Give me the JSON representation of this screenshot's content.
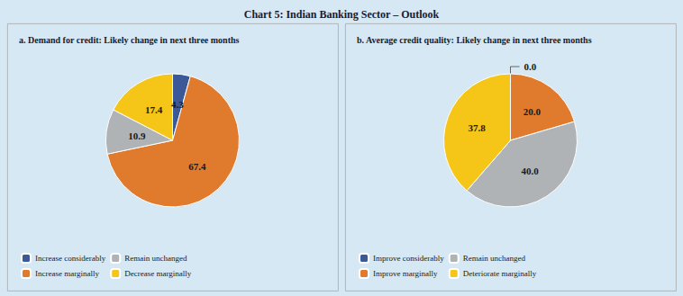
{
  "title": "Chart 5: Indian Banking Sector – Outlook",
  "chart_data": [
    {
      "type": "pie",
      "title": "a. Demand for credit: Likely change in next three months",
      "categories": [
        "Increase considerably",
        "Increase marginally",
        "Remain unchanged",
        "Decrease marginally"
      ],
      "values": [
        4.3,
        67.4,
        10.9,
        17.4
      ],
      "colors": [
        "#3b5998",
        "#e07b2e",
        "#b0b3b5",
        "#f5c518"
      ],
      "data_labels": true,
      "legend": "lower left"
    },
    {
      "type": "pie",
      "title": "b. Average credit quality: Likely change in next three months",
      "categories": [
        "Improve considerably",
        "Improve marginally",
        "Remain unchanged",
        "Deteriorate marginally"
      ],
      "values": [
        0.001,
        20.0,
        40.0,
        37.8
      ],
      "value_labels": [
        "0.0",
        "20.0",
        "40.0",
        "37.8"
      ],
      "colors": [
        "#3b5998",
        "#e07b2e",
        "#b0b3b5",
        "#f5c518"
      ],
      "data_labels": true,
      "legend": "lower left"
    }
  ]
}
